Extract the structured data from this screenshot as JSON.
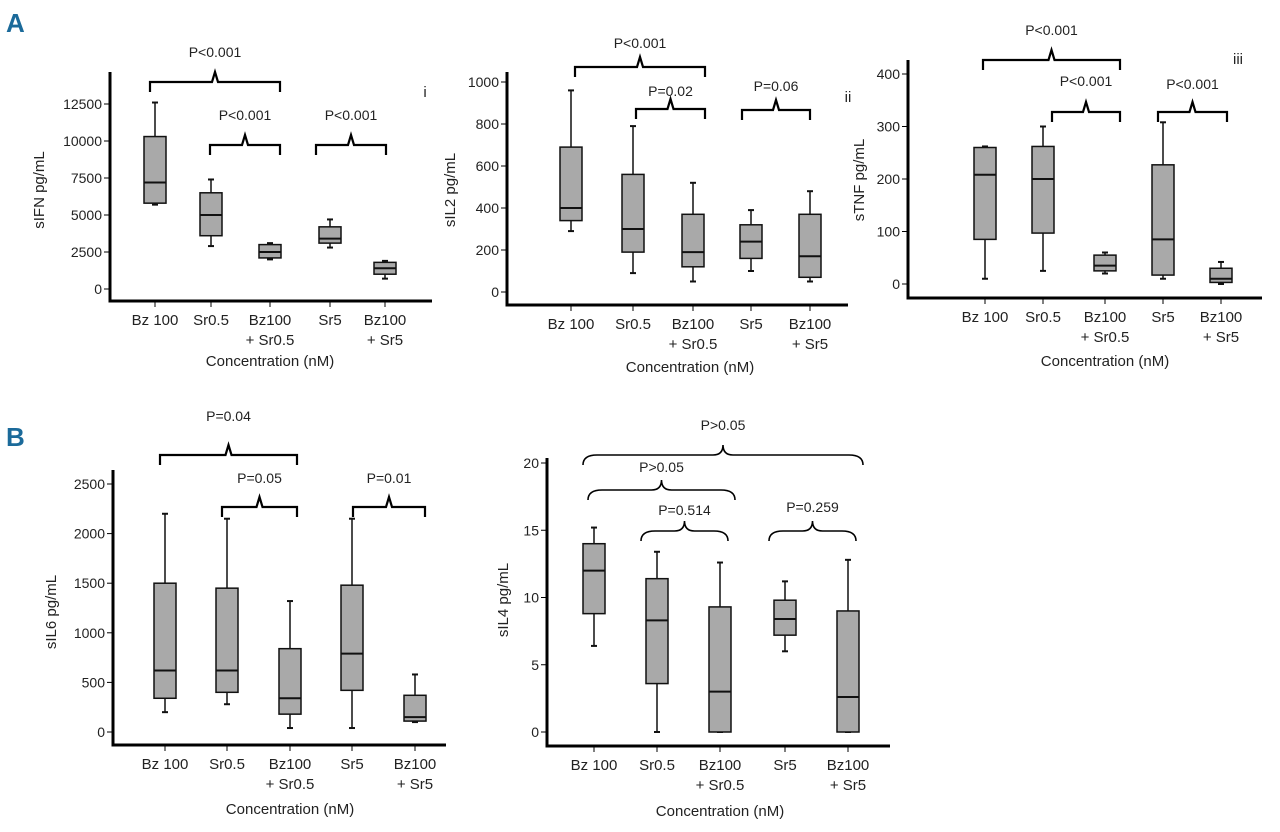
{
  "figure": {
    "panel_letters": [
      "A",
      "B"
    ],
    "accent_color": "#1b6a9a",
    "box_fill": "#a9a9a9"
  },
  "chart_data": [
    {
      "type": "box",
      "id": "ifn",
      "panel_tag": "i",
      "ylabel": "sIFN pg/mL",
      "xlabel": "Concentration (nM)",
      "yticks": [
        0,
        2500,
        5000,
        7500,
        10000,
        12500
      ],
      "categories": [
        [
          "Bz 100"
        ],
        [
          "Sr0.5"
        ],
        [
          "Bz100",
          "+ Sr0.5"
        ],
        [
          "Sr5"
        ],
        [
          "Bz100",
          "+ Sr5"
        ]
      ],
      "boxes": [
        [
          5700,
          5800,
          7200,
          10300,
          12600
        ],
        [
          2900,
          3600,
          5000,
          6500,
          7400
        ],
        [
          2000,
          2100,
          2500,
          3000,
          3100
        ],
        [
          2800,
          3100,
          3400,
          4200,
          4700
        ],
        [
          700,
          1000,
          1400,
          1800,
          1900
        ]
      ],
      "annotations": [
        {
          "from": 0,
          "to": 2,
          "text": "P<0.001"
        },
        {
          "from": 1,
          "to": 2,
          "text": "P<0.001"
        },
        {
          "from": 3,
          "to": 4,
          "text": "P<0.001"
        }
      ]
    },
    {
      "type": "box",
      "id": "il2",
      "panel_tag": "ii",
      "ylabel": "sIL2 pg/mL",
      "xlabel": "Concentration (nM)",
      "yticks": [
        0,
        200,
        400,
        600,
        800,
        1000
      ],
      "categories": [
        [
          "Bz 100"
        ],
        [
          "Sr0.5"
        ],
        [
          "Bz100",
          "+ Sr0.5"
        ],
        [
          "Sr5"
        ],
        [
          "Bz100",
          "+ Sr5"
        ]
      ],
      "boxes": [
        [
          290,
          340,
          400,
          690,
          960
        ],
        [
          90,
          190,
          300,
          560,
          790
        ],
        [
          50,
          120,
          190,
          370,
          520
        ],
        [
          100,
          160,
          240,
          320,
          390
        ],
        [
          50,
          70,
          170,
          370,
          480
        ]
      ],
      "annotations": [
        {
          "from": 0,
          "to": 2,
          "text": "P<0.001"
        },
        {
          "from": 1,
          "to": 2,
          "text": "P=0.02"
        },
        {
          "from": 3,
          "to": 4,
          "text": "P=0.06"
        }
      ]
    },
    {
      "type": "box",
      "id": "tnf",
      "panel_tag": "iii",
      "ylabel": "sTNF pg/mL",
      "xlabel": "Concentration (nM)",
      "yticks": [
        0,
        100,
        200,
        300,
        400
      ],
      "categories": [
        [
          "Bz 100"
        ],
        [
          "Sr0.5"
        ],
        [
          "Bz100",
          "+ Sr0.5"
        ],
        [
          "Sr5"
        ],
        [
          "Bz100",
          "+ Sr5"
        ]
      ],
      "boxes": [
        [
          10,
          85,
          208,
          260,
          262
        ],
        [
          25,
          97,
          200,
          262,
          300
        ],
        [
          20,
          25,
          35,
          55,
          60
        ],
        [
          10,
          17,
          85,
          227,
          308
        ],
        [
          0,
          3,
          10,
          30,
          42
        ]
      ],
      "annotations": [
        {
          "from": 0,
          "to": 2,
          "text": "P<0.001"
        },
        {
          "from": 1,
          "to": 2,
          "text": "P<0.001"
        },
        {
          "from": 3,
          "to": 4,
          "text": "P<0.001"
        }
      ]
    },
    {
      "type": "box",
      "id": "il6",
      "panel_tag": "",
      "ylabel": "sIL6 pg/mL",
      "xlabel": "Concentration (nM)",
      "yticks": [
        0,
        500,
        1000,
        1500,
        2000,
        2500
      ],
      "categories": [
        [
          "Bz 100"
        ],
        [
          "Sr0.5"
        ],
        [
          "Bz100",
          "+ Sr0.5"
        ],
        [
          "Sr5"
        ],
        [
          "Bz100",
          "+ Sr5"
        ]
      ],
      "boxes": [
        [
          200,
          340,
          620,
          1500,
          2200
        ],
        [
          280,
          400,
          620,
          1450,
          2150
        ],
        [
          40,
          180,
          340,
          840,
          1320
        ],
        [
          40,
          420,
          790,
          1480,
          2150
        ],
        [
          100,
          110,
          150,
          370,
          580
        ]
      ],
      "annotations": [
        {
          "from": 0,
          "to": 2,
          "text": "P=0.04"
        },
        {
          "from": 1,
          "to": 2,
          "text": "P=0.05"
        },
        {
          "from": 3,
          "to": 4,
          "text": "P=0.01"
        }
      ]
    },
    {
      "type": "box",
      "id": "il4",
      "panel_tag": "",
      "ylabel": "sIL4 pg/mL",
      "xlabel": "Concentration (nM)",
      "yticks": [
        0,
        5,
        10,
        15,
        20
      ],
      "categories": [
        [
          "Bz 100"
        ],
        [
          "Sr0.5"
        ],
        [
          "Bz100",
          "+ Sr0.5"
        ],
        [
          "Sr5"
        ],
        [
          "Bz100",
          "+ Sr5"
        ]
      ],
      "boxes": [
        [
          6.4,
          8.8,
          12,
          14,
          15.2
        ],
        [
          0,
          3.6,
          8.3,
          11.4,
          13.4
        ],
        [
          0,
          0,
          3,
          9.3,
          12.6
        ],
        [
          6,
          7.2,
          8.4,
          9.8,
          11.2
        ],
        [
          0,
          0,
          2.6,
          9,
          12.8
        ]
      ],
      "annotations": [
        {
          "from": 0,
          "to": 4,
          "text": "P>0.05"
        },
        {
          "from": 0,
          "to": 2,
          "text": "P>0.05"
        },
        {
          "from": 1,
          "to": 2,
          "text": "P=0.514"
        },
        {
          "from": 3,
          "to": 4,
          "text": "P=0.259"
        }
      ]
    }
  ]
}
